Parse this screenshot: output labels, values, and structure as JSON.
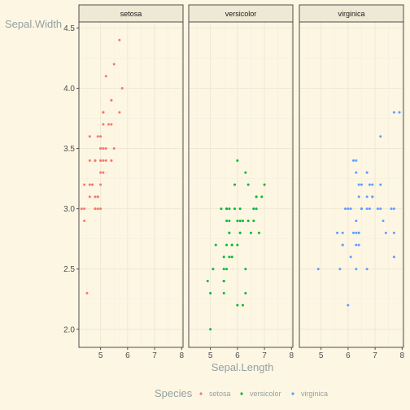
{
  "chart_data": {
    "type": "scatter",
    "xlabel": "Sepal.Length",
    "ylabel": "Sepal.Width",
    "xlim": [
      4.2,
      8.05
    ],
    "ylim": [
      1.85,
      4.55
    ],
    "xticks": [
      5,
      6,
      7,
      8
    ],
    "yticks": [
      2.0,
      2.5,
      3.0,
      3.5,
      4.0,
      4.5
    ],
    "ytick_labels": [
      "2.0",
      "2.5",
      "3.0",
      "3.5",
      "4.0",
      "4.5"
    ],
    "grid": true,
    "legend": {
      "title": "Species",
      "position": "bottom"
    },
    "facets": [
      {
        "name": "setosa",
        "color": "#f8766d",
        "points": [
          [
            5.1,
            3.5
          ],
          [
            4.9,
            3.0
          ],
          [
            4.7,
            3.2
          ],
          [
            4.6,
            3.1
          ],
          [
            5.0,
            3.6
          ],
          [
            5.4,
            3.9
          ],
          [
            4.6,
            3.4
          ],
          [
            5.0,
            3.4
          ],
          [
            4.4,
            2.9
          ],
          [
            4.9,
            3.1
          ],
          [
            5.4,
            3.7
          ],
          [
            4.8,
            3.4
          ],
          [
            4.8,
            3.0
          ],
          [
            4.3,
            3.0
          ],
          [
            5.8,
            4.0
          ],
          [
            5.7,
            4.4
          ],
          [
            5.4,
            3.9
          ],
          [
            5.1,
            3.5
          ],
          [
            5.7,
            3.8
          ],
          [
            5.1,
            3.8
          ],
          [
            5.4,
            3.4
          ],
          [
            5.1,
            3.7
          ],
          [
            4.6,
            3.6
          ],
          [
            5.1,
            3.3
          ],
          [
            4.8,
            3.4
          ],
          [
            5.0,
            3.0
          ],
          [
            5.0,
            3.4
          ],
          [
            5.2,
            3.5
          ],
          [
            5.2,
            3.4
          ],
          [
            4.7,
            3.2
          ],
          [
            4.8,
            3.1
          ],
          [
            5.4,
            3.4
          ],
          [
            5.2,
            4.1
          ],
          [
            5.5,
            4.2
          ],
          [
            4.9,
            3.1
          ],
          [
            5.0,
            3.2
          ],
          [
            5.5,
            3.5
          ],
          [
            4.9,
            3.6
          ],
          [
            4.4,
            3.0
          ],
          [
            5.1,
            3.4
          ],
          [
            5.0,
            3.5
          ],
          [
            4.5,
            2.3
          ],
          [
            4.4,
            3.2
          ],
          [
            5.0,
            3.5
          ],
          [
            5.1,
            3.8
          ],
          [
            4.8,
            3.0
          ],
          [
            5.1,
            3.8
          ],
          [
            4.6,
            3.2
          ],
          [
            5.3,
            3.7
          ],
          [
            5.0,
            3.3
          ]
        ]
      },
      {
        "name": "versicolor",
        "color": "#00ba38",
        "points": [
          [
            7.0,
            3.2
          ],
          [
            6.4,
            3.2
          ],
          [
            6.9,
            3.1
          ],
          [
            5.5,
            2.3
          ],
          [
            6.5,
            2.8
          ],
          [
            5.7,
            2.8
          ],
          [
            6.3,
            3.3
          ],
          [
            4.9,
            2.4
          ],
          [
            6.6,
            2.9
          ],
          [
            5.2,
            2.7
          ],
          [
            5.0,
            2.0
          ],
          [
            5.9,
            3.0
          ],
          [
            6.0,
            2.2
          ],
          [
            6.1,
            2.9
          ],
          [
            5.6,
            2.9
          ],
          [
            6.7,
            3.1
          ],
          [
            5.6,
            3.0
          ],
          [
            5.8,
            2.7
          ],
          [
            6.2,
            2.2
          ],
          [
            5.6,
            2.5
          ],
          [
            5.9,
            3.2
          ],
          [
            6.1,
            2.8
          ],
          [
            6.3,
            2.5
          ],
          [
            6.1,
            2.8
          ],
          [
            6.4,
            2.9
          ],
          [
            6.6,
            3.0
          ],
          [
            6.8,
            2.8
          ],
          [
            6.7,
            3.0
          ],
          [
            6.0,
            2.9
          ],
          [
            5.7,
            2.6
          ],
          [
            5.5,
            2.4
          ],
          [
            5.5,
            2.4
          ],
          [
            5.8,
            2.7
          ],
          [
            6.0,
            2.7
          ],
          [
            5.4,
            3.0
          ],
          [
            6.0,
            3.4
          ],
          [
            6.7,
            3.1
          ],
          [
            6.3,
            2.3
          ],
          [
            5.6,
            3.0
          ],
          [
            5.5,
            2.5
          ],
          [
            5.5,
            2.6
          ],
          [
            6.1,
            3.0
          ],
          [
            5.8,
            2.6
          ],
          [
            5.0,
            2.3
          ],
          [
            5.6,
            2.7
          ],
          [
            5.7,
            3.0
          ],
          [
            5.7,
            2.9
          ],
          [
            6.2,
            2.9
          ],
          [
            5.1,
            2.5
          ],
          [
            5.7,
            2.8
          ]
        ]
      },
      {
        "name": "virginica",
        "color": "#619cff",
        "points": [
          [
            6.3,
            3.3
          ],
          [
            5.8,
            2.7
          ],
          [
            7.1,
            3.0
          ],
          [
            6.3,
            2.9
          ],
          [
            6.5,
            3.0
          ],
          [
            7.6,
            3.0
          ],
          [
            4.9,
            2.5
          ],
          [
            7.3,
            2.9
          ],
          [
            6.7,
            2.5
          ],
          [
            7.2,
            3.6
          ],
          [
            6.5,
            3.2
          ],
          [
            6.4,
            2.7
          ],
          [
            6.8,
            3.0
          ],
          [
            5.7,
            2.5
          ],
          [
            5.8,
            2.8
          ],
          [
            6.4,
            3.2
          ],
          [
            6.5,
            3.0
          ],
          [
            7.7,
            3.8
          ],
          [
            7.7,
            2.6
          ],
          [
            6.0,
            2.2
          ],
          [
            6.9,
            3.2
          ],
          [
            5.6,
            2.8
          ],
          [
            7.7,
            2.8
          ],
          [
            6.3,
            2.7
          ],
          [
            6.7,
            3.3
          ],
          [
            7.2,
            3.2
          ],
          [
            6.2,
            2.8
          ],
          [
            6.1,
            3.0
          ],
          [
            6.4,
            2.8
          ],
          [
            7.2,
            3.0
          ],
          [
            7.4,
            2.8
          ],
          [
            7.9,
            3.8
          ],
          [
            6.4,
            2.8
          ],
          [
            6.3,
            2.8
          ],
          [
            6.1,
            2.6
          ],
          [
            7.7,
            3.0
          ],
          [
            6.3,
            3.4
          ],
          [
            6.4,
            3.1
          ],
          [
            6.0,
            3.0
          ],
          [
            6.9,
            3.1
          ],
          [
            6.7,
            3.1
          ],
          [
            6.9,
            3.1
          ],
          [
            5.8,
            2.7
          ],
          [
            6.8,
            3.2
          ],
          [
            6.7,
            3.3
          ],
          [
            6.7,
            3.0
          ],
          [
            6.3,
            2.5
          ],
          [
            6.5,
            3.0
          ],
          [
            6.2,
            3.4
          ],
          [
            5.9,
            3.0
          ]
        ]
      }
    ]
  }
}
